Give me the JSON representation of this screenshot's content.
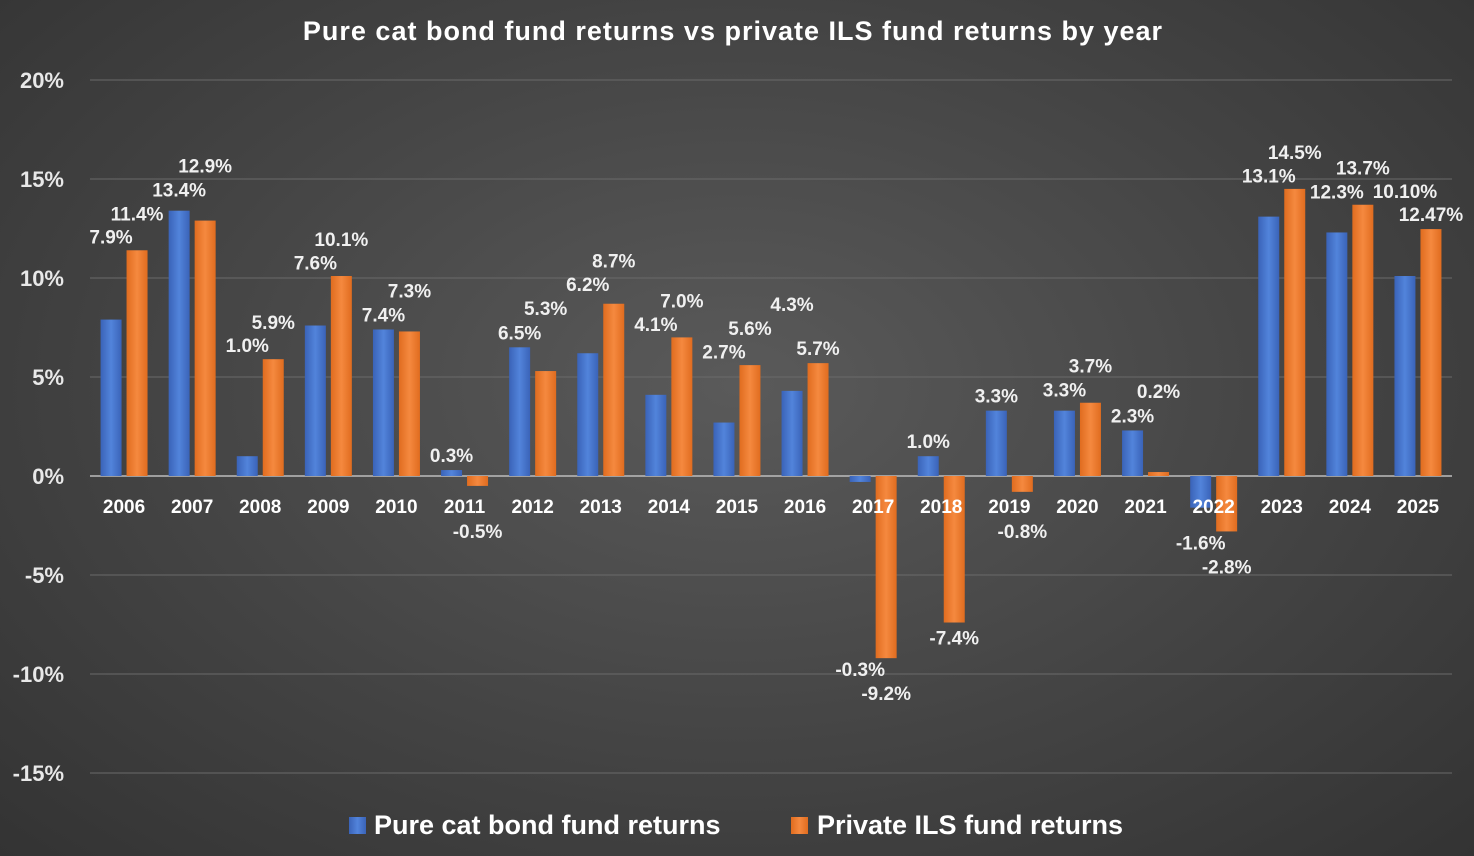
{
  "chart_data": {
    "type": "bar",
    "title": "Pure cat bond fund returns vs private ILS fund returns by year",
    "xlabel": "",
    "ylabel": "",
    "ylim": [
      -15,
      20
    ],
    "yticks": [
      "20%",
      "15%",
      "10%",
      "5%",
      "0%",
      "-5%",
      "-10%",
      "-15%"
    ],
    "ytick_values": [
      20,
      15,
      10,
      5,
      0,
      -5,
      -10,
      -15
    ],
    "grid": true,
    "legend": "bottom",
    "categories": [
      "2006",
      "2007",
      "2008",
      "2009",
      "2010",
      "2011",
      "2012",
      "2013",
      "2014",
      "2015",
      "2016",
      "2017",
      "2018",
      "2019",
      "2020",
      "2021",
      "2022",
      "2023",
      "2024",
      "2025"
    ],
    "series": [
      {
        "name": "Pure cat bond fund returns",
        "color": "#4472c4",
        "values": [
          7.9,
          13.4,
          1.0,
          7.6,
          7.4,
          0.3,
          6.5,
          6.2,
          4.1,
          2.7,
          4.3,
          -0.3,
          1.0,
          3.3,
          3.3,
          2.3,
          -1.6,
          13.1,
          12.3,
          10.1
        ],
        "labels": [
          "7.9%",
          "13.4%",
          "1.0%",
          "7.6%",
          "7.4%",
          "0.3%",
          "6.5%",
          "6.2%",
          "4.1%",
          "2.7%",
          "4.3%",
          "-0.3%",
          "1.0%",
          "3.3%",
          "3.3%",
          "2.3%",
          "-1.6%",
          "13.1%",
          "12.3%",
          "10.10%"
        ]
      },
      {
        "name": "Private ILS fund returns",
        "color": "#ed7d31",
        "values": [
          11.4,
          12.9,
          5.9,
          10.1,
          7.3,
          -0.5,
          5.3,
          8.7,
          7.0,
          5.6,
          5.7,
          -9.2,
          -7.4,
          -0.8,
          3.7,
          0.2,
          -2.8,
          14.5,
          13.7,
          12.47
        ],
        "labels": [
          "11.4%",
          "12.9%",
          "5.9%",
          "10.1%",
          "7.3%",
          "-0.5%",
          "5.3%",
          "8.7%",
          "7.0%",
          "5.6%",
          "5.7%",
          "-9.2%",
          "-7.4%",
          "-0.8%",
          "3.7%",
          "0.2%",
          "-2.8%",
          "14.5%",
          "13.7%",
          "12.47%"
        ]
      }
    ]
  }
}
